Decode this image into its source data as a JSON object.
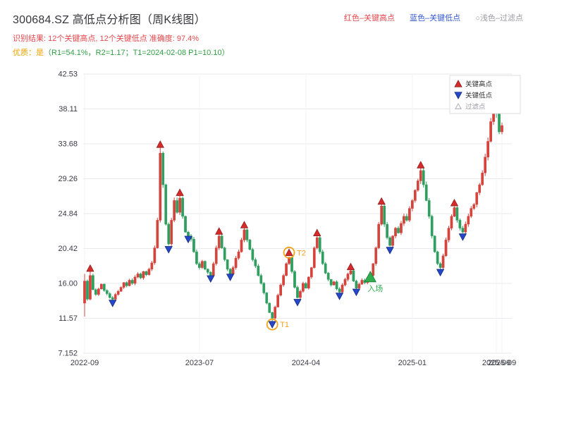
{
  "header": {
    "title": "300684.SZ 高低点分析图（周K线图）",
    "legend_top": {
      "high_label": "红色–关键高点",
      "low_label": "蓝色–关键低点",
      "filter_label": "○浅色–过滤点"
    },
    "result_line": "识别结果: 12个关键高点, 12个关键低点  准确度: 97.4%",
    "quality_prefix": "优质：是",
    "quality_detail": "（R1=54.1%，R2=1.17；T1=2024-02-08 P1=10.10）"
  },
  "colors": {
    "up": "#d5443c",
    "down": "#2f9e5f",
    "key_high": "#d62b2b",
    "key_low": "#2747c9",
    "annotation": "#f5a21b",
    "entry": "#2fae4e",
    "grid": "#e8e8ee",
    "vgrid": "#f3f3f6",
    "axis_text": "#3a3a46",
    "legend_border": "#dddddd",
    "filter_marker": "#b9b9c2"
  },
  "chart_data": {
    "type": "candlestick",
    "symbol": "300684.SZ",
    "interval": "weekly",
    "title": "300684.SZ 高低点分析图（周K线图）",
    "ylim": [
      7.152,
      42.53
    ],
    "y_ticks": [
      "42.53",
      "38.11",
      "33.68",
      "29.26",
      "24.84",
      "20.42",
      "16.00",
      "11.57",
      "7.152"
    ],
    "x_ticks": [
      {
        "index": 0,
        "label": "2022-09"
      },
      {
        "index": 41,
        "label": "2023-07"
      },
      {
        "index": 79,
        "label": "2024-04"
      },
      {
        "index": 117,
        "label": "2025-01"
      },
      {
        "index": 147,
        "label": "2025-09"
      },
      {
        "index": 149,
        "label": "2025-09"
      }
    ],
    "first_open": 13.5,
    "closes": [
      16.3,
      14.0,
      17.0,
      15.2,
      14.6,
      15.3,
      15.9,
      15.1,
      14.7,
      14.2,
      14.0,
      14.6,
      15.0,
      15.5,
      16.1,
      15.7,
      16.4,
      16.0,
      16.8,
      17.2,
      16.7,
      17.5,
      17.1,
      17.8,
      18.6,
      20.5,
      24.0,
      32.5,
      28.5,
      23.5,
      21.0,
      24.0,
      26.5,
      25.0,
      26.8,
      24.5,
      22.5,
      22.0,
      21.6,
      20.0,
      18.5,
      18.0,
      18.8,
      17.8,
      17.4,
      17.0,
      18.5,
      20.5,
      22.0,
      20.5,
      19.0,
      17.8,
      17.2,
      18.0,
      19.2,
      20.0,
      21.5,
      22.8,
      21.5,
      20.3,
      19.0,
      18.2,
      17.0,
      16.0,
      14.8,
      13.5,
      12.3,
      11.6,
      13.0,
      14.5,
      15.8,
      17.0,
      18.5,
      19.3,
      17.5,
      15.5,
      14.2,
      15.0,
      16.0,
      15.4,
      16.8,
      18.0,
      20.5,
      21.8,
      20.0,
      18.5,
      17.3,
      16.5,
      15.8,
      16.2,
      15.3,
      14.9,
      15.8,
      16.5,
      17.2,
      17.6,
      16.3,
      15.4,
      15.9,
      16.4,
      16.1,
      16.7,
      17.0,
      18.5,
      20.5,
      23.5,
      25.8,
      23.5,
      21.8,
      20.8,
      22.0,
      23.0,
      22.4,
      23.6,
      24.5,
      24.0,
      25.5,
      26.5,
      27.8,
      29.0,
      30.3,
      28.5,
      26.5,
      24.5,
      22.0,
      20.0,
      18.5,
      18.0,
      19.5,
      21.5,
      23.0,
      24.5,
      25.6,
      24.0,
      23.0,
      22.5,
      23.5,
      24.5,
      25.5,
      26.0,
      27.5,
      28.5,
      30.0,
      32.0,
      34.0,
      36.5,
      39.0,
      37.5,
      35.2,
      36.0
    ],
    "wick_overrides": {
      "0": {
        "low": 11.8,
        "high": 17.2
      },
      "2": {
        "high": 17.5
      },
      "27": {
        "high": 33.2
      },
      "67": {
        "low": 11.1
      },
      "146": {
        "high": 39.5
      }
    },
    "key_highs": [
      {
        "index": 2,
        "price": 17.9
      },
      {
        "index": 27,
        "price": 33.6
      },
      {
        "index": 34,
        "price": 27.5
      },
      {
        "index": 48,
        "price": 22.6
      },
      {
        "index": 57,
        "price": 23.4
      },
      {
        "index": 73,
        "price": 19.9
      },
      {
        "index": 83,
        "price": 22.4
      },
      {
        "index": 95,
        "price": 18.1
      },
      {
        "index": 106,
        "price": 26.4
      },
      {
        "index": 120,
        "price": 31.0
      },
      {
        "index": 132,
        "price": 26.2
      },
      {
        "index": 146,
        "price": 40.1
      }
    ],
    "key_lows": [
      {
        "index": 10,
        "price": 13.5
      },
      {
        "index": 30,
        "price": 20.3
      },
      {
        "index": 37,
        "price": 21.6
      },
      {
        "index": 45,
        "price": 16.6
      },
      {
        "index": 52,
        "price": 16.8
      },
      {
        "index": 67,
        "price": 10.8
      },
      {
        "index": 76,
        "price": 13.6
      },
      {
        "index": 91,
        "price": 14.4
      },
      {
        "index": 97,
        "price": 14.9
      },
      {
        "index": 109,
        "price": 20.2
      },
      {
        "index": 127,
        "price": 17.4
      },
      {
        "index": 135,
        "price": 21.9
      }
    ],
    "annotations": [
      {
        "kind": "circle-label",
        "index": 73,
        "price": 19.9,
        "label": "T2"
      },
      {
        "kind": "circle-label",
        "index": 67,
        "price": 10.8,
        "label": "T1"
      },
      {
        "kind": "entry",
        "index": 102,
        "price": 16.8,
        "label": "入场"
      }
    ],
    "legend_box": {
      "items": [
        {
          "type": "up",
          "label": "关键高点"
        },
        {
          "type": "down",
          "label": "关键低点"
        },
        {
          "type": "filter",
          "label": "过滤点"
        }
      ]
    }
  }
}
